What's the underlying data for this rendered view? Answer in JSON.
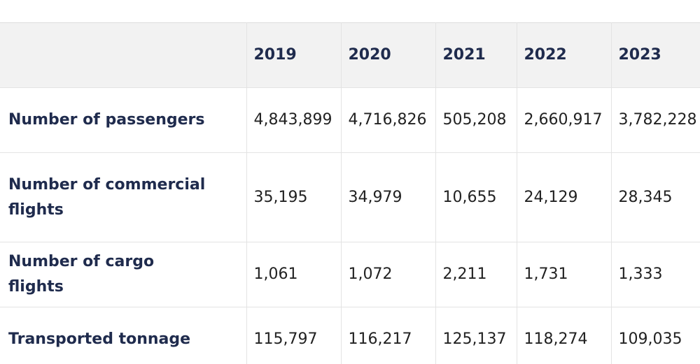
{
  "table": {
    "corner": "",
    "years": [
      "2019",
      "2020",
      "2021",
      "2022",
      "2023"
    ],
    "rows": [
      {
        "label": "Number of passengers",
        "values": [
          "4,843,899",
          "4,716,826",
          "505,208",
          "2,660,917",
          "3,782,228"
        ]
      },
      {
        "label": "Number of commercial flights",
        "values": [
          "35,195",
          "34,979",
          "10,655",
          "24,129",
          "28,345"
        ]
      },
      {
        "label": "Number of cargo flights",
        "values": [
          "1,061",
          "1,072",
          "2,211",
          "1,731",
          "1,333"
        ]
      },
      {
        "label": "Transported tonnage",
        "values": [
          "115,797",
          "116,217",
          "125,137",
          "118,274",
          "109,035"
        ]
      }
    ]
  }
}
